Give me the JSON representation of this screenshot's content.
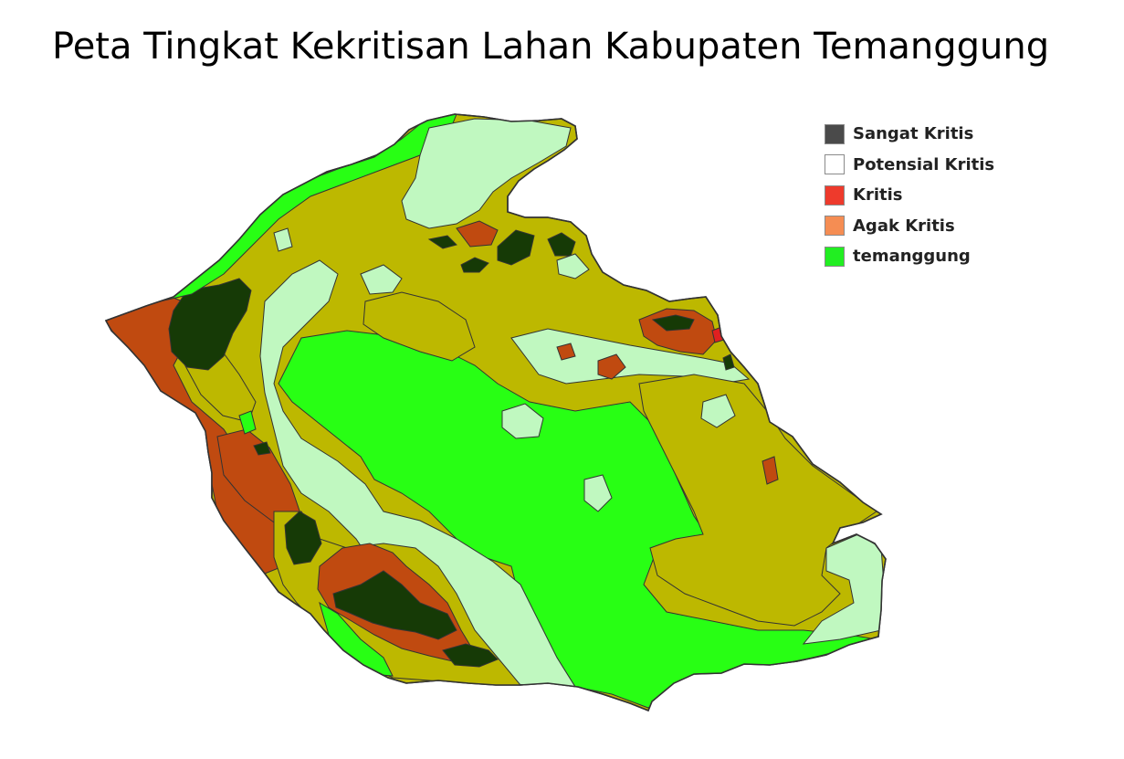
{
  "title": "Peta Tingkat Kekritisan Lahan Kabupaten Temanggung",
  "legend": [
    {
      "label": "Sangat Kritis",
      "color": "#4a4a4a"
    },
    {
      "label": "Potensial Kritis",
      "color": "#ffffff"
    },
    {
      "label": "Kritis",
      "color": "#ee3a2c"
    },
    {
      "label": "Agak Kritis",
      "color": "#f58d53"
    },
    {
      "label": "temanggung",
      "color": "#22ee22"
    }
  ],
  "map_colors": {
    "bright_green": "#28ff14",
    "pale_green": "#c0f8c0",
    "olive": "#bdb800",
    "rust": "#c04a10",
    "dark_forest": "#163a06",
    "red": "#e02020",
    "outline": "#333333"
  }
}
